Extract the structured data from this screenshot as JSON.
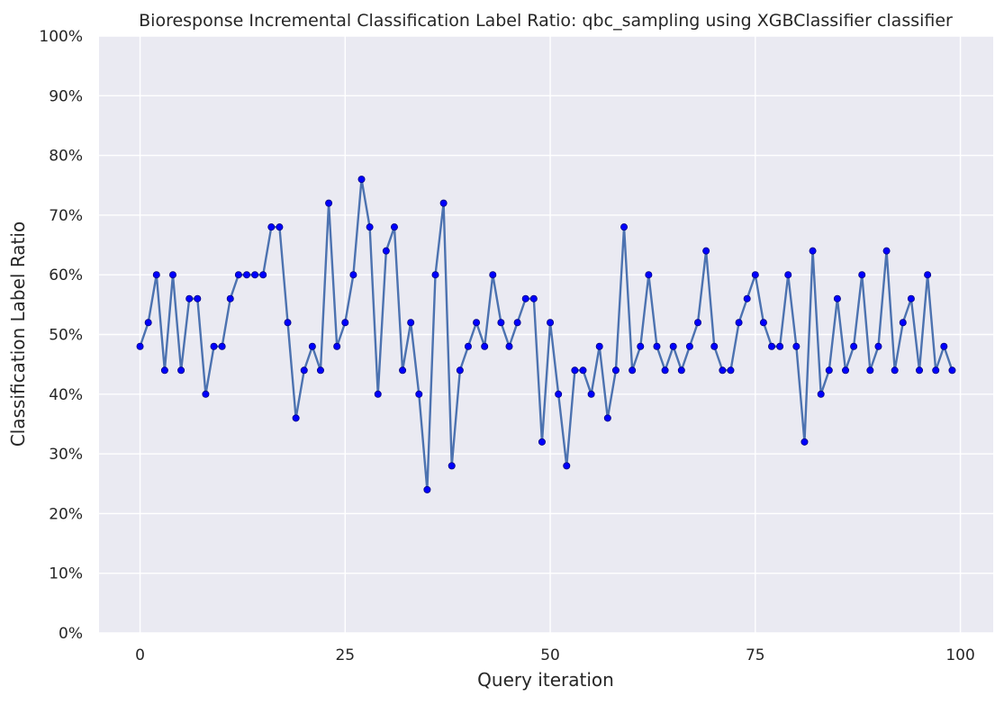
{
  "chart_data": {
    "type": "line",
    "title": "Bioresponse Incremental Classification Label Ratio: qbc_sampling using XGBClassifier classifier",
    "xlabel": "Query iteration",
    "ylabel": "Classification Label Ratio",
    "xlim": [
      -5,
      104
    ],
    "ylim": [
      0,
      1
    ],
    "x_ticks": [
      0,
      25,
      50,
      75,
      100
    ],
    "y_ticks": [
      0,
      0.1,
      0.2,
      0.3,
      0.4,
      0.5,
      0.6,
      0.7,
      0.8,
      0.9,
      1.0
    ],
    "y_tick_labels": [
      "0%",
      "10%",
      "20%",
      "30%",
      "40%",
      "50%",
      "60%",
      "70%",
      "80%",
      "90%",
      "100%"
    ],
    "grid": true,
    "style": {
      "background": "#eaeaf2",
      "grid_color": "#ffffff",
      "line_color": "#4c72b0",
      "marker_color": "#0000ff",
      "marker_edge": "#000080"
    },
    "series": [
      {
        "x": [
          0,
          1,
          2,
          3,
          4,
          5,
          6,
          7,
          8,
          9,
          10,
          11,
          12,
          13,
          14,
          15,
          16,
          17,
          18,
          19,
          20,
          21,
          22,
          23,
          24,
          25,
          26,
          27,
          28,
          29,
          30,
          31,
          32,
          33,
          34,
          35,
          36,
          37,
          38,
          39,
          40,
          41,
          42,
          43,
          44,
          45,
          46,
          47,
          48,
          49,
          50,
          51,
          52,
          53,
          54,
          55,
          56,
          57,
          58,
          59,
          60,
          61,
          62,
          63,
          64,
          65,
          66,
          67,
          68,
          69,
          70,
          71,
          72,
          73,
          74,
          75,
          76,
          77,
          78,
          79,
          80,
          81,
          82,
          83,
          84,
          85,
          86,
          87,
          88,
          89,
          90,
          91,
          92,
          93,
          94,
          95,
          96,
          97,
          98,
          99
        ],
        "values": [
          0.48,
          0.52,
          0.6,
          0.44,
          0.6,
          0.44,
          0.56,
          0.56,
          0.4,
          0.48,
          0.48,
          0.56,
          0.6,
          0.6,
          0.6,
          0.6,
          0.68,
          0.68,
          0.52,
          0.36,
          0.44,
          0.48,
          0.44,
          0.72,
          0.48,
          0.52,
          0.6,
          0.76,
          0.68,
          0.4,
          0.64,
          0.68,
          0.44,
          0.52,
          0.4,
          0.24,
          0.6,
          0.72,
          0.28,
          0.44,
          0.48,
          0.52,
          0.48,
          0.6,
          0.52,
          0.48,
          0.52,
          0.56,
          0.56,
          0.32,
          0.52,
          0.4,
          0.28,
          0.44,
          0.44,
          0.4,
          0.48,
          0.36,
          0.44,
          0.68,
          0.44,
          0.48,
          0.6,
          0.48,
          0.44,
          0.48,
          0.44,
          0.48,
          0.52,
          0.64,
          0.48,
          0.44,
          0.44,
          0.52,
          0.56,
          0.6,
          0.52,
          0.48,
          0.48,
          0.6,
          0.48,
          0.32,
          0.64,
          0.4,
          0.44,
          0.56,
          0.44,
          0.48,
          0.6,
          0.44,
          0.48,
          0.64,
          0.44,
          0.52,
          0.56,
          0.44,
          0.6,
          0.44,
          0.48,
          0.44
        ]
      }
    ]
  }
}
